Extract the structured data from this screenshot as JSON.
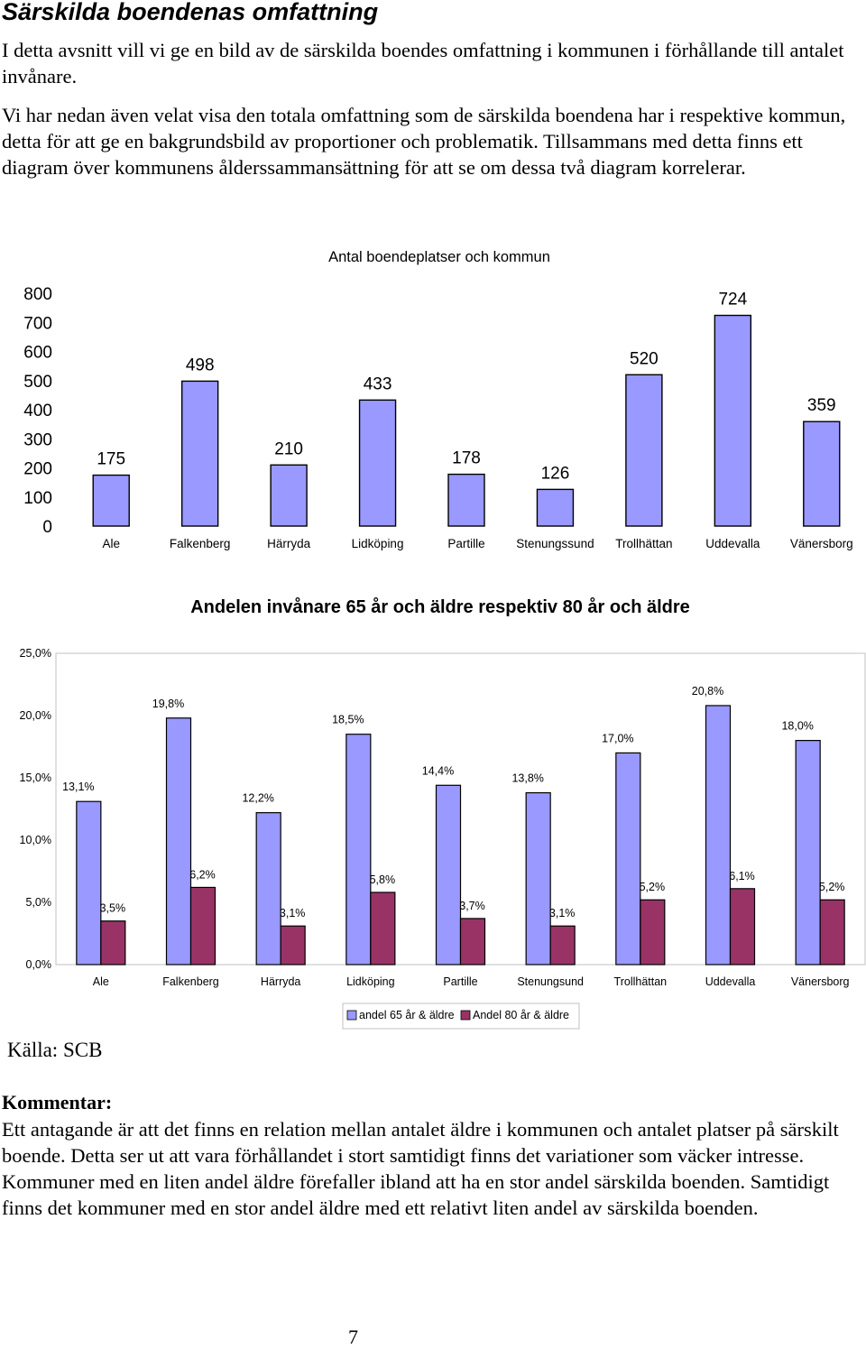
{
  "heading": "Särskilda boendenas omfattning",
  "paragraphs": [
    "I detta avsnitt vill vi ge en bild av de särskilda boendes omfattning i kommunen i förhållande till antalet invånare.",
    "Vi har nedan även velat visa den totala omfattning som de särskilda boendena har i respektive kommun, detta för att ge en bakgrundsbild av proportioner och problematik. Tillsammans med detta finns ett diagram över kommunens ålderssammansättning för att se om dessa två diagram korrelerar."
  ],
  "chart_data": [
    {
      "type": "bar",
      "title": "Antal boendeplatser och kommun",
      "categories": [
        "Ale",
        "Falkenberg",
        "Härryda",
        "Lidköping",
        "Partille",
        "Stenungssund",
        "Trollhättan",
        "Uddevalla",
        "Vänersborg"
      ],
      "values": [
        175,
        498,
        210,
        433,
        178,
        126,
        520,
        724,
        359
      ],
      "value_labels": [
        "175",
        "498",
        "210",
        "433",
        "178",
        "126",
        "520",
        "724",
        "359"
      ],
      "y_ticks": [
        "0",
        "100",
        "200",
        "300",
        "400",
        "500",
        "600",
        "700",
        "800"
      ],
      "ylim": [
        0,
        800
      ],
      "xlabel": "",
      "ylabel": "",
      "grid": false,
      "legend": false,
      "color": "#9999ff"
    },
    {
      "type": "bar",
      "title": "Andelen invånare 65 år och äldre respektiv 80 år och äldre",
      "categories": [
        "Ale",
        "Falkenberg",
        "Härryda",
        "Lidköping",
        "Partille",
        "Stenungsund",
        "Trollhättan",
        "Uddevalla",
        "Vänersborg"
      ],
      "series": [
        {
          "name": "andel 65 år & äldre",
          "values": [
            13.1,
            19.8,
            12.2,
            18.5,
            14.4,
            13.8,
            17.0,
            20.8,
            18.0
          ],
          "labels": [
            "13,1%",
            "19,8%",
            "12,2%",
            "18,5%",
            "14,4%",
            "13,8%",
            "17,0%",
            "20,8%",
            "18,0%"
          ],
          "color": "#9999ff"
        },
        {
          "name": "Andel 80 år & äldre",
          "values": [
            3.5,
            6.2,
            3.1,
            5.8,
            3.7,
            3.1,
            5.2,
            6.1,
            5.2
          ],
          "labels": [
            "3,5%",
            "6,2%",
            "3,1%",
            "5,8%",
            "3,7%",
            "3,1%",
            "5,2%",
            "6,1%",
            "5,2%"
          ],
          "color": "#993366"
        }
      ],
      "y_ticks": [
        "0,0%",
        "5,0%",
        "10,0%",
        "15,0%",
        "20,0%",
        "25,0%"
      ],
      "ylim": [
        0,
        25
      ],
      "xlabel": "",
      "ylabel": "",
      "grid": false,
      "legend": "bottom"
    }
  ],
  "source": "Källa: SCB",
  "comment_title": "Kommentar:",
  "comment": "Ett antagande är att det finns en relation mellan antalet äldre i kommunen och antalet platser på särskilt boende. Detta ser ut att vara förhållandet i stort samtidigt finns det variationer som väcker intresse. Kommuner med en liten andel äldre förefaller ibland att ha en stor andel särskilda boenden. Samtidigt finns det kommuner med en stor andel äldre med ett relativt liten andel av särskilda boenden.",
  "page_number": "7"
}
